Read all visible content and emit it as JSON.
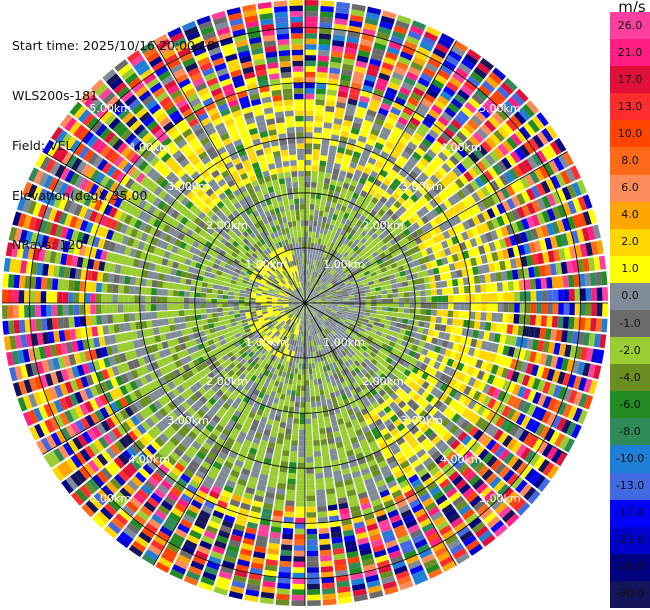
{
  "header": {
    "start_time": "Start time: 2025/10/16 20:00:18",
    "instrument": "WLS200s-181",
    "field": "Field: VEL",
    "elevation": "Elevation(deg): 35.00",
    "nrays": "NRays: 120"
  },
  "colorbar": {
    "unit": "m/s",
    "ticks": [
      "26.0",
      "21.0",
      "17.0",
      "13.0",
      "10.0",
      "8.0",
      "6.0",
      "4.0",
      "2.0",
      "1.0",
      "0.0",
      "-1.0",
      "-2.0",
      "-4.0",
      "-6.0",
      "-8.0",
      "-10.0",
      "-13.0",
      "-17.0",
      "-21.0",
      "-26.0",
      "-30.0"
    ],
    "colors": [
      "#ff3f9f",
      "#ff1e82",
      "#e0103a",
      "#ff2d2d",
      "#ff4500",
      "#ff6a1a",
      "#ff8c5a",
      "#ffa500",
      "#ffd700",
      "#ffff00",
      "#7f8c98",
      "#6b6b6b",
      "#9acd32",
      "#6b8e23",
      "#228b22",
      "#2e8b57",
      "#1f7fd6",
      "#4169e1",
      "#0000ff",
      "#0000cd",
      "#000080",
      "#14145a"
    ]
  },
  "chart_data": {
    "type": "heatmap",
    "subtype": "radar PPI (plan position indicator) of radial velocity",
    "field": "VEL",
    "units": "m/s",
    "elevation_deg": 35.0,
    "n_rays": 120,
    "range_rings_km": [
      1.0,
      2.0,
      3.0,
      4.0,
      5.0
    ],
    "ring_labels": [
      "1.00km",
      "2.00km",
      "3.00km",
      "4.00km",
      "5.00km"
    ],
    "azimuth_spokes_deg": [
      0,
      30,
      60,
      90,
      120,
      150,
      180,
      210,
      240,
      270,
      300,
      330
    ],
    "max_range_km": 5.5,
    "velocity_levels": [
      -30,
      -26,
      -21,
      -17,
      -13,
      -10,
      -8,
      -6,
      -4,
      -2,
      -1,
      0,
      1,
      2,
      4,
      6,
      8,
      10,
      13,
      17,
      21,
      26
    ],
    "pattern": "Near field (<1 km) mostly 0 to -1 m/s (gray) with +1..+2 (yellow) patches to the west; 1-3 km dominated by -1 to -2 m/s (light green) with +1..+2 (yellow) arcs on the east and north sides; beyond ~3.5 km noisy, values spanning the full -30..+26 m/s scale."
  }
}
